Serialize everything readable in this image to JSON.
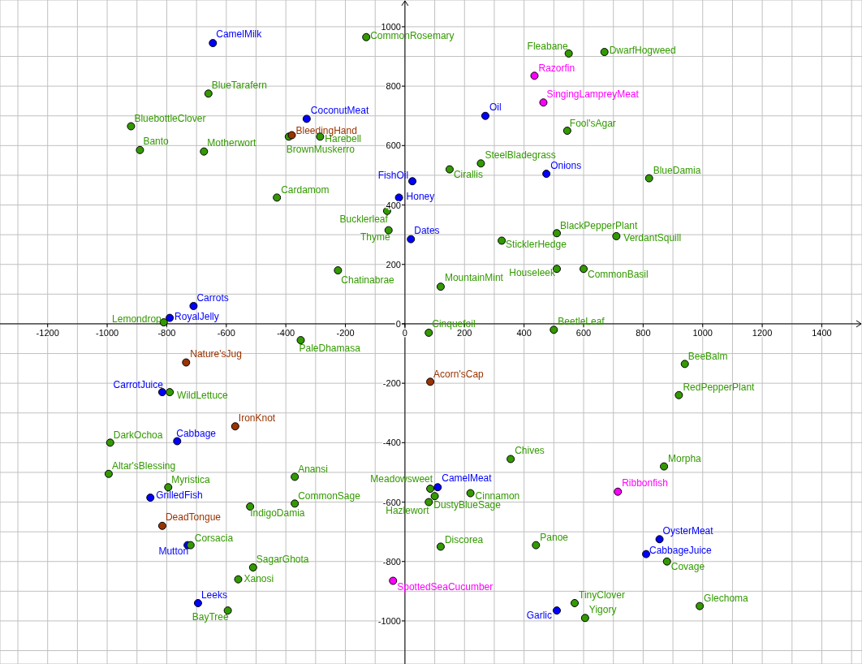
{
  "chart_data": {
    "type": "scatter",
    "marker": "circle",
    "grid": true,
    "xlim": [
      -1360,
      1535
    ],
    "ylim": [
      -1145,
      1090
    ],
    "xticks": [
      {
        "value": -1300,
        "label": null
      },
      -1200,
      {
        "value": -1100,
        "label": null
      },
      -1000,
      {
        "value": -900,
        "label": null
      },
      -800,
      {
        "value": -700,
        "label": null
      },
      -600,
      {
        "value": -500,
        "label": null
      },
      -400,
      {
        "value": -300,
        "label": null
      },
      -200,
      {
        "value": -100,
        "label": null
      },
      0,
      {
        "value": 100,
        "label": null
      },
      200,
      {
        "value": 300,
        "label": null
      },
      400,
      {
        "value": 500,
        "label": null
      },
      600,
      {
        "value": 700,
        "label": null
      },
      800,
      {
        "value": 900,
        "label": null
      },
      1000,
      {
        "value": 1100,
        "label": null
      },
      1200,
      {
        "value": 1300,
        "label": null
      },
      1400,
      {
        "value": 1500,
        "label": null
      }
    ],
    "yticks": [
      {
        "value": -1100,
        "label": null
      },
      -1000,
      {
        "value": -900,
        "label": null
      },
      -800,
      {
        "value": -700,
        "label": null
      },
      -600,
      {
        "value": -500,
        "label": null
      },
      -400,
      {
        "value": -300,
        "label": null
      },
      -200,
      {
        "value": -100,
        "label": null
      },
      0,
      {
        "value": 100,
        "label": null
      },
      200,
      {
        "value": 300,
        "label": null
      },
      400,
      {
        "value": 500,
        "label": null
      },
      600,
      {
        "value": 700,
        "label": null
      },
      800,
      {
        "value": 900,
        "label": null
      },
      1000
    ],
    "series": [
      {
        "color": "#0000ff",
        "x": [
          -645,
          -330,
          270,
          475,
          25,
          -20,
          20,
          -710,
          -790,
          -815,
          -765,
          110,
          -855,
          855,
          -730,
          810,
          -695,
          510
        ],
        "values": [
          945,
          690,
          700,
          505,
          480,
          425,
          285,
          60,
          20,
          -230,
          -395,
          -550,
          -585,
          -725,
          -745,
          -775,
          -940,
          -965
        ],
        "value_labels": [
          "CamelMilk",
          "CoconutMeat",
          "Oil",
          "Onions",
          "FishOil",
          "Honey",
          "Dates",
          "Carrots",
          "RoyalJelly",
          "CarrotJuice",
          "Cabbage",
          "CamelMeat",
          "GrilledFish",
          "OysterMeat",
          "Mutton",
          "CabbageJuice",
          "Leeks",
          "Garlic"
        ]
      },
      {
        "color": "#339900",
        "x": [
          -130,
          550,
          670,
          -660,
          -920,
          -890,
          -675,
          -390,
          -285,
          545,
          255,
          150,
          820,
          -430,
          -60,
          -55,
          510,
          710,
          325,
          -225,
          510,
          600,
          120,
          -810,
          80,
          500,
          -350,
          940,
          -790,
          920,
          -990,
          355,
          870,
          -995,
          -370,
          -795,
          85,
          220,
          100,
          80,
          -370,
          -520,
          -720,
          120,
          440,
          880,
          -510,
          -560,
          570,
          990,
          -595,
          605
        ],
        "values": [
          965,
          910,
          915,
          775,
          665,
          585,
          580,
          630,
          630,
          650,
          540,
          520,
          490,
          425,
          380,
          315,
          305,
          295,
          280,
          180,
          185,
          185,
          125,
          5,
          -30,
          -20,
          -55,
          -135,
          -230,
          -240,
          -400,
          -455,
          -480,
          -505,
          -515,
          -550,
          -555,
          -570,
          -580,
          -600,
          -605,
          -615,
          -745,
          -750,
          -745,
          -800,
          -820,
          -860,
          -940,
          -950,
          -965,
          -990
        ],
        "value_labels": [
          "CommonRosemary",
          "Fleabane",
          "DwarfHogweed",
          "BlueTarafern",
          "BluebottleClover",
          "Banto",
          "Motherwort",
          "BrownMuskerro",
          "Harebell",
          "Fool'sAgar",
          "SteelBladegrass",
          "Cirallis",
          "BlueDamia",
          "Cardamom",
          "Bucklerleaf",
          "Thyme",
          "BlackPepperPlant",
          "VerdantSquill",
          "SticklerHedge",
          "Chatinabrae",
          "Houseleek",
          "CommonBasil",
          "MountainMint",
          "Lemondrop",
          "Cinquefoil",
          "BeetleLeaf",
          "PaleDhamasa",
          "BeeBalm",
          "WildLettuce",
          "RedPepperPlant",
          "DarkOchoa",
          "Chives",
          "Morpha",
          "Altar'sBlessing",
          "Anansi",
          "Myristica",
          "Meadowsweet",
          "Cinnamon",
          "Hazlewort",
          "DustyBlueSage",
          "CommonSage",
          "IndigoDamia",
          "Corsacia",
          "Discorea",
          "Panoe",
          "Covage",
          "SagarGhota",
          "Xanosi",
          "TinyClover",
          "Glechoma",
          "BayTree",
          "Yigory"
        ]
      },
      {
        "color": "#993300",
        "x": [
          -380,
          -735,
          85,
          -570,
          -815
        ],
        "values": [
          635,
          -130,
          -195,
          -345,
          -680
        ],
        "value_labels": [
          "BleedingHand",
          "Nature'sJug",
          "Acorn'sCap",
          "IronKnot",
          "DeadTongue"
        ]
      },
      {
        "color": "#ff00ff",
        "x": [
          435,
          465,
          715,
          -40
        ],
        "values": [
          835,
          745,
          -565,
          -865
        ],
        "value_labels": [
          "Razorfin",
          "SingingLampreyMeat",
          "Ribbonfish",
          "SpottedSeaCucumber"
        ]
      }
    ]
  }
}
